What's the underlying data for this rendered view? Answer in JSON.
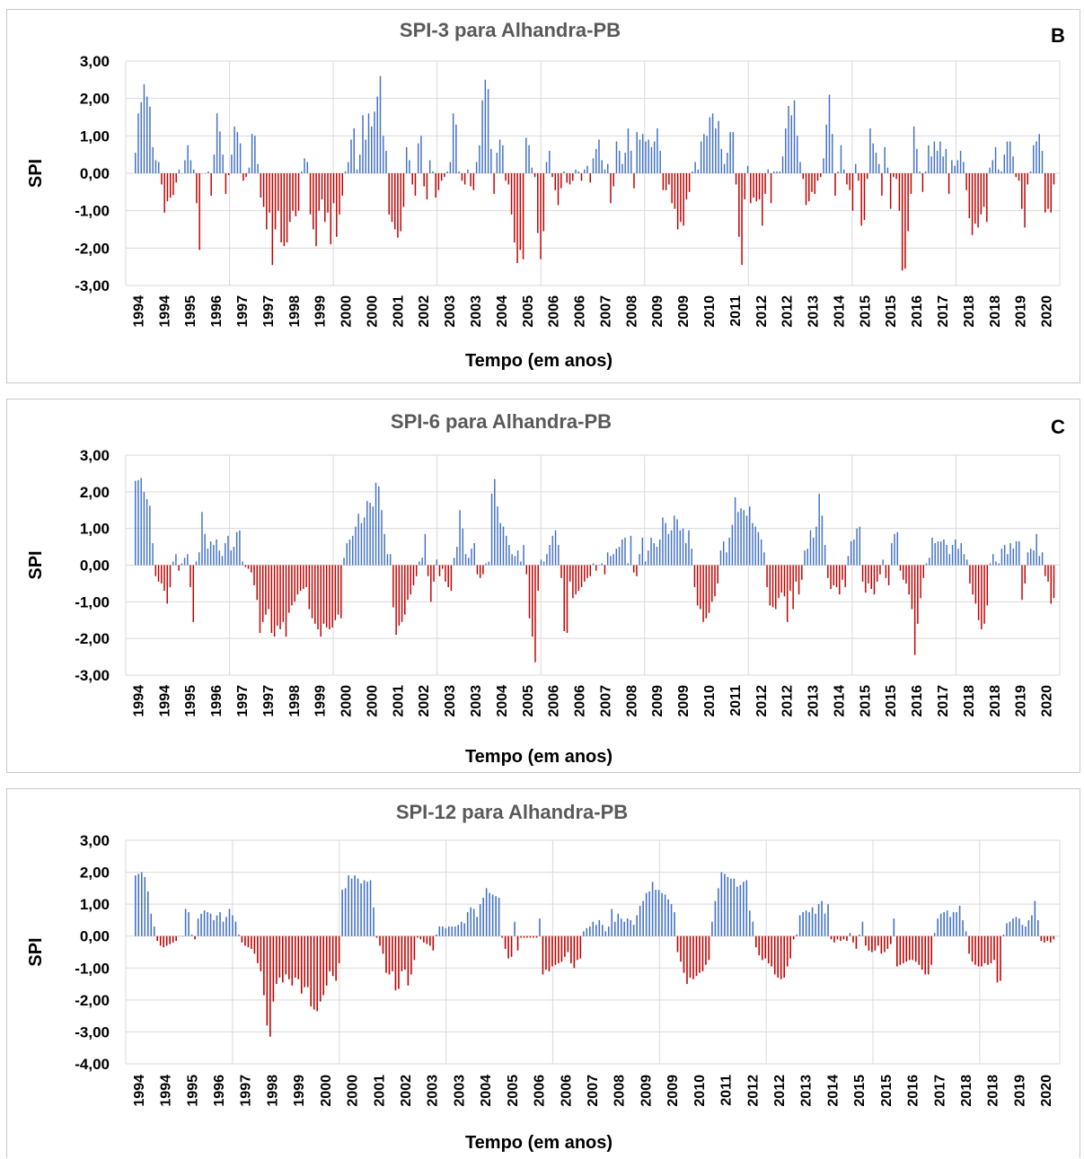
{
  "colors": {
    "positive": "#4472c4",
    "negative": "#c00000",
    "grid": "#d9d9d9"
  },
  "chart_data": [
    {
      "type": "bar",
      "title": "SPI-3 para Alhandra-PB",
      "panel_letter": "B",
      "ylabel": "SPI",
      "xlabel": "Tempo  (em anos)",
      "ylim": [
        -3,
        3
      ],
      "yticks": [
        "3,00",
        "2,00",
        "1,00",
        "0,00",
        "-1,00",
        "-2,00",
        "-3,00"
      ],
      "xticks": [
        "1994",
        "1994",
        "1995",
        "1996",
        "1997",
        "1997",
        "1998",
        "1999",
        "2000",
        "2000",
        "2001",
        "2002",
        "2003",
        "2003",
        "2004",
        "2005",
        "2006",
        "2006",
        "2007",
        "2008",
        "2009",
        "2009",
        "2010",
        "2011",
        "2012",
        "2012",
        "2013",
        "2014",
        "2015",
        "2015",
        "2016",
        "2017",
        "2018",
        "2018",
        "2019",
        "2020"
      ],
      "grid": "vertical every 4 tick labels",
      "values": [
        0.55,
        1.6,
        1.9,
        2.38,
        2.05,
        1.78,
        0.7,
        0.35,
        0.3,
        -0.3,
        -1.05,
        -0.75,
        -0.65,
        -0.58,
        -0.25,
        0.1,
        0.0,
        0.35,
        0.75,
        0.35,
        0.1,
        -0.8,
        -2.05,
        0.0,
        0.0,
        0.05,
        -0.6,
        0.5,
        1.6,
        1.12,
        0.5,
        -0.55,
        -0.05,
        0.5,
        1.25,
        1.1,
        0.8,
        -0.2,
        -0.1,
        0.15,
        1.05,
        1.0,
        0.25,
        -0.65,
        -0.9,
        -1.5,
        -1.05,
        -2.45,
        -1.5,
        -1.0,
        -1.85,
        -1.95,
        -1.85,
        -1.3,
        -1.0,
        -1.15,
        -1.0,
        0.05,
        0.4,
        0.3,
        -1.1,
        -1.5,
        -1.95,
        -1.0,
        -0.7,
        -1.3,
        -1.05,
        -1.9,
        -0.8,
        -1.7,
        -1.1,
        -0.6,
        0.05,
        0.3,
        0.9,
        1.2,
        0.1,
        0.5,
        1.55,
        0.9,
        1.6,
        1.25,
        1.65,
        2.05,
        2.6,
        1.0,
        0.6,
        -1.1,
        -1.3,
        -1.5,
        -1.72,
        -1.55,
        -0.9,
        0.7,
        0.35,
        -0.3,
        -0.6,
        0.8,
        1.0,
        -0.35,
        -0.7,
        0.35,
        0.05,
        -0.65,
        -0.45,
        -0.2,
        -0.1,
        0.05,
        0.3,
        1.6,
        1.3,
        0.05,
        -0.2,
        -0.3,
        0.1,
        -0.35,
        -0.45,
        0.3,
        0.75,
        1.95,
        2.5,
        2.25,
        0.65,
        -0.55,
        0.55,
        0.9,
        0.75,
        -0.2,
        -0.3,
        -1.1,
        -1.85,
        -2.4,
        -2.05,
        -2.3,
        0.95,
        0.75,
        0.15,
        -0.1,
        -1.6,
        -2.3,
        -1.55,
        0.3,
        0.6,
        -0.1,
        -0.45,
        -0.85,
        -0.4,
        0.05,
        -0.25,
        -0.3,
        -0.2,
        0.1,
        0.05,
        -0.2,
        0.1,
        0.2,
        -0.25,
        0.4,
        0.65,
        0.9,
        0.35,
        0.1,
        0.25,
        -0.8,
        -0.35,
        0.85,
        0.6,
        0.25,
        0.55,
        1.2,
        0.6,
        -0.4,
        1.1,
        0.9,
        1.05,
        0.85,
        0.9,
        0.7,
        0.85,
        1.2,
        0.6,
        -0.45,
        -0.45,
        -0.3,
        -0.8,
        -0.95,
        -1.5,
        -1.3,
        -1.4,
        -0.7,
        -0.5,
        0.05,
        0.3,
        0.1,
        0.85,
        1.05,
        1.0,
        1.5,
        1.6,
        1.2,
        1.4,
        0.65,
        0.25,
        0.55,
        1.1,
        1.1,
        -0.3,
        -1.7,
        -2.45,
        -0.7,
        0.2,
        -0.8,
        -0.65,
        -0.75,
        -0.7,
        -1.4,
        -0.55,
        0.1,
        -0.8,
        0.05,
        0.05,
        0.05,
        0.45,
        1.2,
        1.8,
        1.55,
        1.95,
        1.0,
        0.3,
        -0.15,
        -0.85,
        -0.75,
        -0.5,
        -0.55,
        -0.2,
        -0.1,
        0.4,
        1.3,
        2.1,
        1.05,
        -0.6,
        0.05,
        0.75,
        0.1,
        -0.3,
        -0.45,
        -1.0,
        0.25,
        -0.2,
        -1.4,
        -1.25,
        -0.15,
        1.2,
        0.8,
        0.55,
        0.25,
        -0.6,
        0.7,
        0.15,
        -0.95,
        -0.1,
        -0.15,
        -1.0,
        -2.6,
        -2.55,
        -1.55,
        -0.55,
        1.25,
        0.65,
        0.05,
        -0.5,
        0.05,
        0.75,
        0.45,
        0.85,
        0.6,
        0.85,
        0.45,
        0.65,
        -0.55,
        0.35,
        0.2,
        0.35,
        0.6,
        0.3,
        -0.45,
        -1.2,
        -1.65,
        -1.35,
        -1.45,
        -1.1,
        -0.9,
        -1.3,
        0.15,
        0.35,
        0.7,
        0.1,
        0.05,
        0.5,
        0.85,
        0.85,
        0.45,
        -0.1,
        -0.2,
        -0.95,
        -1.45,
        -0.3,
        0.05,
        0.75,
        0.85,
        1.05,
        0.6,
        -1.05,
        -0.95,
        -1.05,
        -0.3
      ]
    },
    {
      "type": "bar",
      "title": "SPI-6 para Alhandra-PB",
      "panel_letter": "C",
      "ylabel": "SPI",
      "xlabel": "Tempo  (em anos)",
      "ylim": [
        -3,
        3
      ],
      "yticks": [
        "3,00",
        "2,00",
        "1,00",
        "0,00",
        "-1,00",
        "-2,00",
        "-3,00"
      ],
      "xticks": [
        "1994",
        "1994",
        "1995",
        "1996",
        "1997",
        "1997",
        "1998",
        "1999",
        "2000",
        "2000",
        "2001",
        "2002",
        "2003",
        "2003",
        "2004",
        "2005",
        "2006",
        "2006",
        "2007",
        "2008",
        "2009",
        "2009",
        "2010",
        "2011",
        "2012",
        "2012",
        "2013",
        "2014",
        "2015",
        "2015",
        "2016",
        "2017",
        "2018",
        "2018",
        "2019",
        "2020"
      ],
      "grid": "vertical every 4 tick labels",
      "values": [
        2.3,
        2.32,
        2.38,
        2.0,
        1.8,
        1.62,
        0.6,
        -0.3,
        -0.45,
        -0.5,
        -0.7,
        -1.05,
        -0.6,
        0.1,
        0.3,
        -0.15,
        0.05,
        0.2,
        0.3,
        -0.6,
        -1.55,
        0.1,
        0.35,
        1.45,
        0.85,
        0.45,
        0.65,
        0.55,
        0.7,
        0.4,
        0.25,
        0.6,
        0.8,
        0.4,
        0.5,
        0.9,
        0.95,
        0.1,
        -0.05,
        -0.1,
        -0.2,
        -0.55,
        -0.95,
        -1.85,
        -1.55,
        -1.35,
        -1.2,
        -1.85,
        -1.95,
        -1.65,
        -1.75,
        -1.55,
        -1.95,
        -1.3,
        -1.1,
        -1.0,
        -0.8,
        -0.7,
        -0.65,
        -0.6,
        -1.2,
        -1.45,
        -1.6,
        -1.75,
        -1.95,
        -1.6,
        -1.7,
        -1.75,
        -1.7,
        -1.5,
        -1.35,
        -1.45,
        0.2,
        0.6,
        0.7,
        0.8,
        1.05,
        1.4,
        1.15,
        1.3,
        1.75,
        1.7,
        1.6,
        2.25,
        2.15,
        1.5,
        0.85,
        0.3,
        0.3,
        -1.15,
        -1.9,
        -1.65,
        -1.55,
        -1.35,
        -0.95,
        -0.8,
        -0.55,
        -0.3,
        0.1,
        0.2,
        0.85,
        -0.3,
        -1.0,
        -0.45,
        0.15,
        -0.3,
        -0.1,
        -0.45,
        -0.6,
        -0.7,
        0.2,
        0.5,
        1.5,
        1.0,
        0.3,
        0.2,
        0.45,
        0.6,
        -0.25,
        -0.35,
        -0.25,
        0.05,
        0.1,
        1.95,
        2.35,
        1.6,
        1.15,
        1.05,
        0.8,
        0.55,
        0.3,
        0.25,
        0.4,
        0.1,
        0.55,
        -0.25,
        -1.45,
        -1.95,
        -2.65,
        -0.7,
        0.15,
        0.1,
        0.3,
        0.55,
        0.8,
        0.95,
        0.55,
        -0.35,
        -1.8,
        -1.85,
        -0.45,
        -0.9,
        -0.8,
        -0.7,
        -0.6,
        -0.45,
        -0.35,
        -0.3,
        0.05,
        -0.15,
        0.0,
        0.05,
        -0.25,
        0.35,
        0.25,
        0.3,
        0.45,
        0.5,
        0.7,
        0.75,
        0.05,
        0.8,
        -0.2,
        -0.3,
        0.3,
        0.75,
        0.1,
        0.4,
        0.75,
        0.6,
        0.5,
        0.7,
        1.3,
        1.15,
        0.85,
        0.95,
        1.35,
        1.25,
        0.95,
        1.0,
        0.6,
        0.95,
        0.45,
        -0.6,
        -1.1,
        -1.2,
        -1.55,
        -1.45,
        -1.3,
        -1.0,
        -0.85,
        -0.5,
        0.4,
        0.65,
        0.35,
        0.75,
        1.1,
        1.85,
        1.45,
        1.55,
        1.5,
        1.35,
        1.6,
        1.15,
        1.05,
        0.9,
        0.7,
        0.35,
        -0.6,
        -1.1,
        -1.15,
        -1.2,
        -0.9,
        -0.75,
        -0.85,
        -1.55,
        -0.7,
        -1.2,
        -0.45,
        -0.8,
        -0.4,
        0.4,
        0.45,
        0.95,
        0.75,
        1.05,
        1.95,
        1.35,
        0.55,
        -0.35,
        -0.65,
        -0.55,
        -0.6,
        -0.8,
        -0.4,
        -0.6,
        0.25,
        0.65,
        0.7,
        1.0,
        1.05,
        -0.45,
        -0.75,
        -0.5,
        -0.65,
        -0.8,
        -0.45,
        -0.25,
        0.15,
        -0.35,
        -0.55,
        0.6,
        0.85,
        0.9,
        -0.15,
        -0.4,
        -0.5,
        -0.8,
        -1.2,
        -2.45,
        -1.6,
        -0.9,
        -0.35,
        0.05,
        0.2,
        0.75,
        0.6,
        0.65,
        0.65,
        0.7,
        0.55,
        0.3,
        0.55,
        0.7,
        0.45,
        0.6,
        0.3,
        0.15,
        -0.5,
        -0.8,
        -1.05,
        -1.5,
        -1.75,
        -1.6,
        -1.1,
        0.05,
        0.3,
        0.1,
        0.05,
        0.45,
        0.55,
        0.3,
        0.6,
        0.45,
        0.65,
        0.65,
        -0.95,
        -0.5,
        0.35,
        0.45,
        0.4,
        0.85,
        0.25,
        0.35,
        -0.3,
        -0.45,
        -1.05,
        -0.9
      ]
    },
    {
      "type": "bar",
      "title": "SPI-12 para Alhandra-PB",
      "ylabel": "SPI",
      "xlabel": "Tempo  (em anos)",
      "ylim": [
        -4,
        3
      ],
      "yticks": [
        "3,00",
        "2,00",
        "1,00",
        "0,00",
        "-1,00",
        "-2,00",
        "-3,00",
        "-4,00"
      ],
      "xticks": [
        "1994",
        "1994",
        "1995",
        "1996",
        "1997",
        "1998",
        "1999",
        "2000",
        "2000",
        "2001",
        "2002",
        "2003",
        "2003",
        "2004",
        "2005",
        "2006",
        "2006",
        "2007",
        "2008",
        "2009",
        "2009",
        "2010",
        "2011",
        "2012",
        "2012",
        "2013",
        "2014",
        "2015",
        "2015",
        "2016",
        "2017",
        "2018",
        "2018",
        "2019",
        "2020"
      ],
      "grid": "vertical every 4 tick labels",
      "values": [
        1.9,
        1.95,
        2.0,
        1.85,
        1.4,
        0.7,
        0.3,
        -0.15,
        -0.3,
        -0.35,
        -0.3,
        -0.25,
        -0.2,
        -0.15,
        0.0,
        0.0,
        0.85,
        0.75,
        0.05,
        -0.1,
        0.55,
        0.7,
        0.8,
        0.75,
        0.7,
        0.5,
        0.65,
        0.75,
        0.45,
        0.6,
        0.85,
        0.65,
        0.45,
        0.05,
        -0.2,
        -0.3,
        -0.35,
        -0.4,
        -0.55,
        -0.85,
        -1.1,
        -1.85,
        -2.8,
        -3.15,
        -2.05,
        -1.5,
        -1.3,
        -1.45,
        -1.2,
        -1.35,
        -1.55,
        -1.3,
        -1.35,
        -1.8,
        -1.6,
        -1.6,
        -2.2,
        -2.3,
        -2.35,
        -2.05,
        -1.85,
        -1.55,
        -1.1,
        -1.25,
        -1.4,
        -0.85,
        1.45,
        1.5,
        1.9,
        1.8,
        1.9,
        1.8,
        1.65,
        1.75,
        1.7,
        1.75,
        0.9,
        -0.05,
        -0.3,
        -0.55,
        -1.15,
        -1.2,
        -1.1,
        -1.7,
        -1.65,
        -1.1,
        -1.05,
        -1.55,
        -1.2,
        -0.75,
        -0.05,
        -0.1,
        -0.2,
        -0.25,
        -0.3,
        -0.45,
        0.05,
        0.3,
        0.3,
        0.25,
        0.3,
        0.3,
        0.3,
        0.35,
        0.45,
        0.4,
        0.75,
        0.9,
        0.85,
        0.6,
        1.0,
        1.2,
        1.5,
        1.35,
        1.3,
        1.25,
        1.2,
        -0.05,
        -0.4,
        -0.7,
        -0.65,
        0.45,
        -0.45,
        -0.05,
        -0.05,
        -0.05,
        -0.05,
        -0.05,
        -0.05,
        0.55,
        -1.2,
        -1.05,
        -1.1,
        -0.95,
        -0.9,
        -0.85,
        -0.8,
        -0.65,
        -0.5,
        -0.85,
        -1.0,
        -0.75,
        -0.7,
        0.15,
        0.25,
        0.3,
        0.45,
        0.35,
        0.5,
        0.35,
        0.15,
        0.3,
        0.85,
        0.45,
        0.7,
        0.55,
        0.45,
        0.55,
        0.5,
        0.35,
        0.65,
        0.95,
        1.1,
        1.35,
        1.4,
        1.7,
        1.45,
        1.45,
        1.35,
        1.3,
        1.15,
        1.0,
        0.75,
        -0.5,
        -0.8,
        -1.15,
        -1.5,
        -1.3,
        -1.35,
        -1.25,
        -1.15,
        -1.1,
        -0.9,
        -0.75,
        0.45,
        1.1,
        1.5,
        2.0,
        1.95,
        1.85,
        1.8,
        1.8,
        1.55,
        1.6,
        1.7,
        1.75,
        0.8,
        0.45,
        -0.35,
        -0.6,
        -0.75,
        -0.7,
        -0.85,
        -0.95,
        -1.2,
        -1.3,
        -1.35,
        -1.3,
        -0.95,
        -0.7,
        -0.1,
        0.05,
        0.65,
        0.75,
        0.8,
        0.75,
        0.9,
        0.7,
        1.0,
        1.1,
        0.7,
        1.0,
        -0.1,
        -0.2,
        -0.1,
        -0.15,
        -0.1,
        -0.15,
        0.1,
        -0.2,
        -0.4,
        0.05,
        0.45,
        -0.3,
        -0.45,
        -0.5,
        -0.45,
        -0.3,
        -0.55,
        -0.5,
        -0.4,
        -0.25,
        0.55,
        -0.95,
        -0.9,
        -0.85,
        -0.8,
        -0.75,
        -0.75,
        -0.8,
        -0.9,
        -1.05,
        -1.2,
        -1.2,
        -0.9,
        0.1,
        0.55,
        0.7,
        0.75,
        0.8,
        0.6,
        0.75,
        0.75,
        0.95,
        0.5,
        0.15,
        -0.55,
        -0.8,
        -0.9,
        -0.95,
        -0.95,
        -0.85,
        -0.9,
        -0.85,
        -0.75,
        -1.45,
        -1.4,
        0.05,
        0.4,
        0.45,
        0.55,
        0.6,
        0.55,
        0.35,
        0.3,
        0.5,
        0.65,
        1.1,
        0.5,
        -0.15,
        -0.2,
        -0.15,
        -0.2,
        -0.1
      ]
    }
  ]
}
